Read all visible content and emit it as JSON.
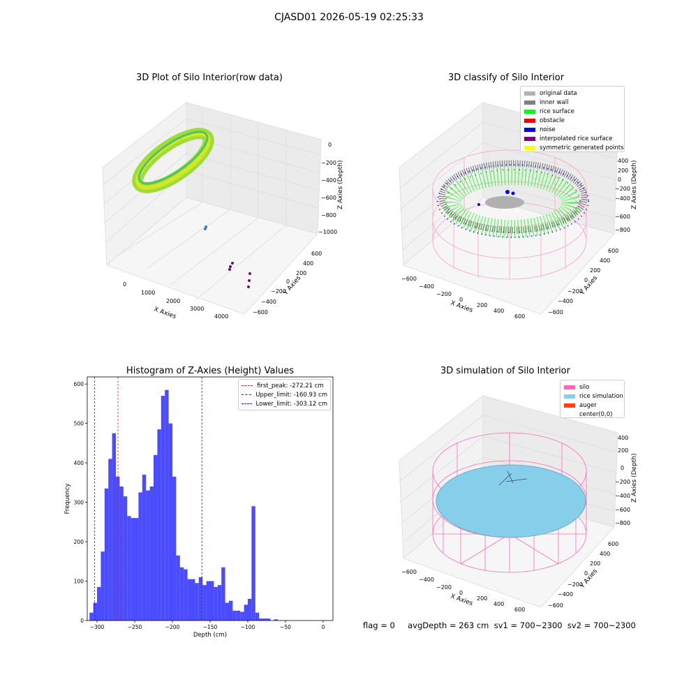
{
  "figure": {
    "suptitle": "CJASD01 2026-05-19 02:25:33",
    "status": "flag = 0     avgDepth = 263 cm  sv1 = 700~2300  sv2 = 700~2300"
  },
  "colors": {
    "hist_bar": "#4b4bff",
    "first_peak": "#d62728",
    "limits": "#1f1fbf",
    "original_data": "#b0b0b0",
    "inner_wall": "#808080",
    "rice_surface": "#00ff00",
    "obstacle": "#ff0000",
    "noise": "#0000ff",
    "interpolated_rice_surface": "#800080",
    "symmetric_generated_points": "#ffff00",
    "silo": "#ff69b4",
    "rice_simulation": "#87ceeb",
    "auger": "#ff4500"
  },
  "plot1": {
    "title": "3D Plot of Silo Interior(row data)",
    "xlabel": "X Axies",
    "ylabel": "Y Axies",
    "zlabel": "Z Axies (Depth)",
    "x_ticks": [
      "0",
      "1000",
      "2000",
      "3000",
      "4000"
    ],
    "y_ticks": [
      "600",
      "400",
      "200",
      "0",
      "−200",
      "−400",
      "−600"
    ],
    "z_ticks": [
      "0",
      "−200",
      "−400",
      "−600",
      "−800",
      "−1000"
    ]
  },
  "plot2": {
    "title": "3D classify of Silo Interior",
    "xlabel": "X Axies",
    "ylabel": "Y Axies",
    "zlabel": "Z Axies (Depth)",
    "x_ticks": [
      "−600",
      "−400",
      "−200",
      "0",
      "200",
      "400",
      "600"
    ],
    "y_ticks": [
      "600",
      "400",
      "200",
      "0",
      "−200",
      "−400",
      "−600"
    ],
    "z_ticks": [
      "400",
      "200",
      "0",
      "−200",
      "−400",
      "−600",
      "−800"
    ],
    "legend": [
      {
        "label": "original data",
        "color": "#b0b0b0"
      },
      {
        "label": "inner wall",
        "color": "#808080"
      },
      {
        "label": "rice surface",
        "color": "#00ff00"
      },
      {
        "label": "obstacle",
        "color": "#ff0000"
      },
      {
        "label": "noise",
        "color": "#0000ff"
      },
      {
        "label": "interpolated rice surface",
        "color": "#800080"
      },
      {
        "label": "symmetric generated points",
        "color": "#ffff00"
      }
    ]
  },
  "plot4": {
    "title": "3D simulation of Silo Interior",
    "xlabel": "X Axies",
    "ylabel": "Y Axies",
    "zlabel": "Z Axies (Depth)",
    "x_ticks": [
      "−600",
      "−400",
      "−200",
      "0",
      "200",
      "400",
      "600"
    ],
    "y_ticks": [
      "600",
      "400",
      "200",
      "0",
      "−200",
      "−400",
      "−600"
    ],
    "z_ticks": [
      "400",
      "200",
      "0",
      "−200",
      "−400",
      "−600",
      "−800"
    ],
    "legend": [
      {
        "label": "silo",
        "color": "#ff69b4"
      },
      {
        "label": "rice simulation",
        "color": "#87ceeb"
      },
      {
        "label": "auger",
        "color": "#ff4500"
      },
      {
        "label": "center(0,0)",
        "color": ""
      }
    ]
  },
  "chart_data": {
    "type": "bar",
    "title": "Histogram of Z-Axies (Height) Values",
    "xlabel": "Depth (cm)",
    "ylabel": "Frequency",
    "xlim": [
      -313,
      13
    ],
    "ylim": [
      0,
      618
    ],
    "x_ticks": [
      -300,
      -250,
      -200,
      -150,
      -100,
      -50,
      0
    ],
    "y_ticks": [
      0,
      100,
      200,
      300,
      400,
      500,
      600
    ],
    "bin_start": -310,
    "bin_width": 5,
    "values": [
      20,
      45,
      85,
      175,
      335,
      410,
      475,
      365,
      340,
      315,
      265,
      260,
      260,
      325,
      370,
      330,
      340,
      420,
      485,
      570,
      585,
      500,
      365,
      165,
      135,
      130,
      105,
      105,
      95,
      110,
      90,
      100,
      100,
      85,
      90,
      135,
      45,
      50,
      25,
      25,
      22,
      40,
      55,
      290,
      20,
      5,
      5,
      5,
      0,
      3
    ],
    "vlines": [
      {
        "label": "first_peak: -272.21 cm",
        "x": -272.21,
        "color": "#d62728"
      },
      {
        "label": "Upper_limit: -160.93 cm",
        "x": -160.93,
        "color": "#1f1fbf"
      },
      {
        "label": "Lower_limit: -303.12 cm",
        "x": -303.12,
        "color": "#1f1fbf"
      }
    ],
    "grid": false,
    "legend_position": "top-right"
  }
}
